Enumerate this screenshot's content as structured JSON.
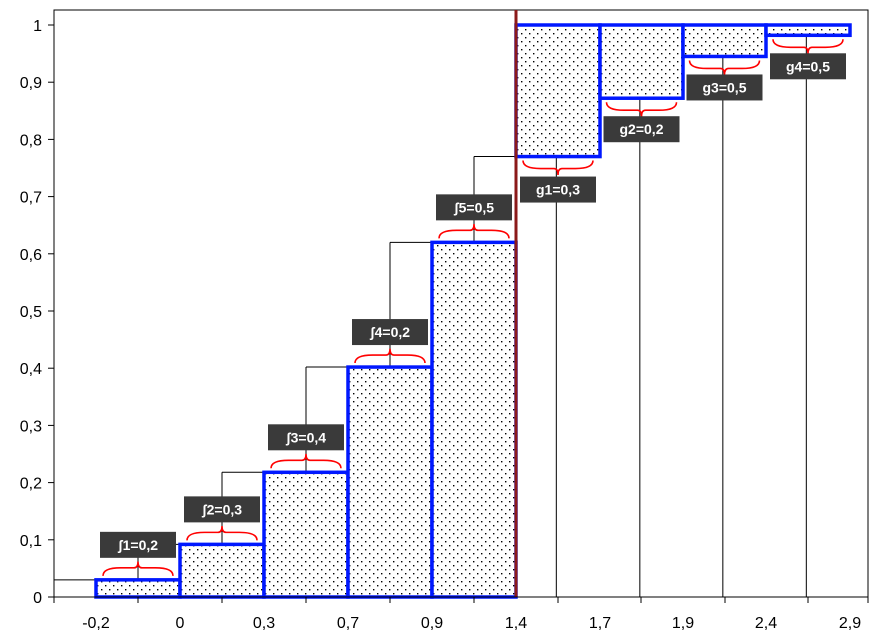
{
  "chart_data": {
    "type": "bar",
    "title": "",
    "xlabel": "",
    "ylabel": "",
    "ylim": [
      0,
      1
    ],
    "y_ticks": [
      "0",
      "0,1",
      "0,2",
      "0,3",
      "0,4",
      "0,5",
      "0,6",
      "0,7",
      "0,8",
      "0,9",
      "1"
    ],
    "x_ticks": [
      "-0,2",
      "0",
      "0,3",
      "0,7",
      "0,9",
      "1,4",
      "1,7",
      "1,9",
      "2,4",
      "2,9"
    ],
    "grid": false,
    "colors": {
      "bar_outline": "#0018ff",
      "bar_dots": "#000000",
      "brace": "#ff0000",
      "label_box": "#3a3a3a",
      "divider": "#8b1a1a",
      "step_line": "#000000"
    },
    "bars": [
      {
        "label": "ʃ1=0,2",
        "from": -0.2,
        "to": 0,
        "bottom": 0,
        "top": 0.03
      },
      {
        "label": "ʃ2=0,3",
        "from": 0,
        "to": 0.3,
        "bottom": 0,
        "top": 0.092
      },
      {
        "label": "ʃ3=0,4",
        "from": 0.3,
        "to": 0.7,
        "bottom": 0,
        "top": 0.218
      },
      {
        "label": "ʃ4=0,2",
        "from": 0.7,
        "to": 0.9,
        "bottom": 0,
        "top": 0.402
      },
      {
        "label": "ʃ5=0,5",
        "from": 0.9,
        "to": 1.4,
        "bottom": 0,
        "top": 0.62
      },
      {
        "label": "g1=0,3",
        "from": 1.4,
        "to": 1.7,
        "bottom": 0.77,
        "top": 1.0
      },
      {
        "label": "g2=0,2",
        "from": 1.7,
        "to": 1.9,
        "bottom": 0.872,
        "top": 1.0
      },
      {
        "label": "g3=0,5",
        "from": 1.9,
        "to": 2.4,
        "bottom": 0.945,
        "top": 1.0
      },
      {
        "label": "g4=0,5",
        "from": 2.4,
        "to": 2.9,
        "bottom": 0.982,
        "top": 1.0
      }
    ],
    "cumulative_steps": [
      0.03,
      0.092,
      0.218,
      0.402,
      0.62,
      0.77,
      0.872,
      0.945,
      0.982,
      1.0
    ],
    "divider_x": 1.4
  }
}
